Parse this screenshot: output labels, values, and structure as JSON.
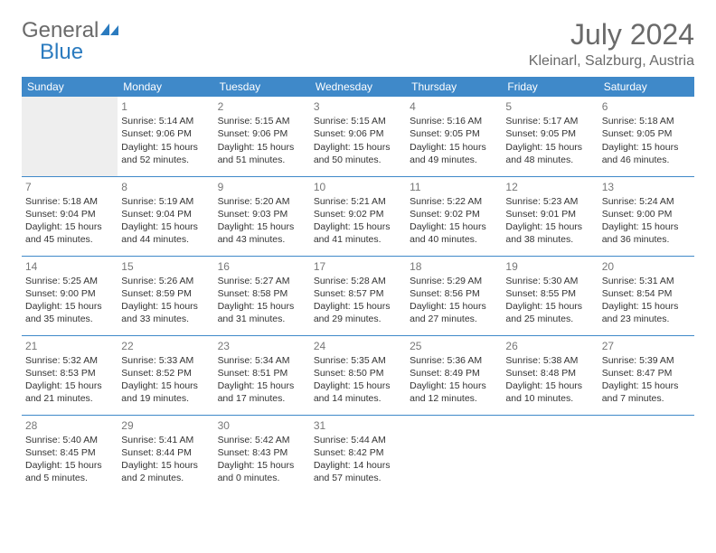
{
  "logo": {
    "part1": "General",
    "part2": "Blue"
  },
  "title": "July 2024",
  "location": "Kleinarl, Salzburg, Austria",
  "colors": {
    "header_bg": "#3f89c9",
    "header_text": "#ffffff",
    "rule": "#3f89c9",
    "muted_text": "#6a6a6a",
    "body_text": "#333333",
    "lead_blank_bg": "#eeeeee",
    "logo_blue": "#2b7bbf"
  },
  "day_headers": [
    "Sunday",
    "Monday",
    "Tuesday",
    "Wednesday",
    "Thursday",
    "Friday",
    "Saturday"
  ],
  "weeks": [
    [
      {
        "blank": true,
        "lead": true
      },
      {
        "day": "1",
        "sunrise": "Sunrise: 5:14 AM",
        "sunset": "Sunset: 9:06 PM",
        "d1": "Daylight: 15 hours",
        "d2": "and 52 minutes."
      },
      {
        "day": "2",
        "sunrise": "Sunrise: 5:15 AM",
        "sunset": "Sunset: 9:06 PM",
        "d1": "Daylight: 15 hours",
        "d2": "and 51 minutes."
      },
      {
        "day": "3",
        "sunrise": "Sunrise: 5:15 AM",
        "sunset": "Sunset: 9:06 PM",
        "d1": "Daylight: 15 hours",
        "d2": "and 50 minutes."
      },
      {
        "day": "4",
        "sunrise": "Sunrise: 5:16 AM",
        "sunset": "Sunset: 9:05 PM",
        "d1": "Daylight: 15 hours",
        "d2": "and 49 minutes."
      },
      {
        "day": "5",
        "sunrise": "Sunrise: 5:17 AM",
        "sunset": "Sunset: 9:05 PM",
        "d1": "Daylight: 15 hours",
        "d2": "and 48 minutes."
      },
      {
        "day": "6",
        "sunrise": "Sunrise: 5:18 AM",
        "sunset": "Sunset: 9:05 PM",
        "d1": "Daylight: 15 hours",
        "d2": "and 46 minutes."
      }
    ],
    [
      {
        "day": "7",
        "sunrise": "Sunrise: 5:18 AM",
        "sunset": "Sunset: 9:04 PM",
        "d1": "Daylight: 15 hours",
        "d2": "and 45 minutes."
      },
      {
        "day": "8",
        "sunrise": "Sunrise: 5:19 AM",
        "sunset": "Sunset: 9:04 PM",
        "d1": "Daylight: 15 hours",
        "d2": "and 44 minutes."
      },
      {
        "day": "9",
        "sunrise": "Sunrise: 5:20 AM",
        "sunset": "Sunset: 9:03 PM",
        "d1": "Daylight: 15 hours",
        "d2": "and 43 minutes."
      },
      {
        "day": "10",
        "sunrise": "Sunrise: 5:21 AM",
        "sunset": "Sunset: 9:02 PM",
        "d1": "Daylight: 15 hours",
        "d2": "and 41 minutes."
      },
      {
        "day": "11",
        "sunrise": "Sunrise: 5:22 AM",
        "sunset": "Sunset: 9:02 PM",
        "d1": "Daylight: 15 hours",
        "d2": "and 40 minutes."
      },
      {
        "day": "12",
        "sunrise": "Sunrise: 5:23 AM",
        "sunset": "Sunset: 9:01 PM",
        "d1": "Daylight: 15 hours",
        "d2": "and 38 minutes."
      },
      {
        "day": "13",
        "sunrise": "Sunrise: 5:24 AM",
        "sunset": "Sunset: 9:00 PM",
        "d1": "Daylight: 15 hours",
        "d2": "and 36 minutes."
      }
    ],
    [
      {
        "day": "14",
        "sunrise": "Sunrise: 5:25 AM",
        "sunset": "Sunset: 9:00 PM",
        "d1": "Daylight: 15 hours",
        "d2": "and 35 minutes."
      },
      {
        "day": "15",
        "sunrise": "Sunrise: 5:26 AM",
        "sunset": "Sunset: 8:59 PM",
        "d1": "Daylight: 15 hours",
        "d2": "and 33 minutes."
      },
      {
        "day": "16",
        "sunrise": "Sunrise: 5:27 AM",
        "sunset": "Sunset: 8:58 PM",
        "d1": "Daylight: 15 hours",
        "d2": "and 31 minutes."
      },
      {
        "day": "17",
        "sunrise": "Sunrise: 5:28 AM",
        "sunset": "Sunset: 8:57 PM",
        "d1": "Daylight: 15 hours",
        "d2": "and 29 minutes."
      },
      {
        "day": "18",
        "sunrise": "Sunrise: 5:29 AM",
        "sunset": "Sunset: 8:56 PM",
        "d1": "Daylight: 15 hours",
        "d2": "and 27 minutes."
      },
      {
        "day": "19",
        "sunrise": "Sunrise: 5:30 AM",
        "sunset": "Sunset: 8:55 PM",
        "d1": "Daylight: 15 hours",
        "d2": "and 25 minutes."
      },
      {
        "day": "20",
        "sunrise": "Sunrise: 5:31 AM",
        "sunset": "Sunset: 8:54 PM",
        "d1": "Daylight: 15 hours",
        "d2": "and 23 minutes."
      }
    ],
    [
      {
        "day": "21",
        "sunrise": "Sunrise: 5:32 AM",
        "sunset": "Sunset: 8:53 PM",
        "d1": "Daylight: 15 hours",
        "d2": "and 21 minutes."
      },
      {
        "day": "22",
        "sunrise": "Sunrise: 5:33 AM",
        "sunset": "Sunset: 8:52 PM",
        "d1": "Daylight: 15 hours",
        "d2": "and 19 minutes."
      },
      {
        "day": "23",
        "sunrise": "Sunrise: 5:34 AM",
        "sunset": "Sunset: 8:51 PM",
        "d1": "Daylight: 15 hours",
        "d2": "and 17 minutes."
      },
      {
        "day": "24",
        "sunrise": "Sunrise: 5:35 AM",
        "sunset": "Sunset: 8:50 PM",
        "d1": "Daylight: 15 hours",
        "d2": "and 14 minutes."
      },
      {
        "day": "25",
        "sunrise": "Sunrise: 5:36 AM",
        "sunset": "Sunset: 8:49 PM",
        "d1": "Daylight: 15 hours",
        "d2": "and 12 minutes."
      },
      {
        "day": "26",
        "sunrise": "Sunrise: 5:38 AM",
        "sunset": "Sunset: 8:48 PM",
        "d1": "Daylight: 15 hours",
        "d2": "and 10 minutes."
      },
      {
        "day": "27",
        "sunrise": "Sunrise: 5:39 AM",
        "sunset": "Sunset: 8:47 PM",
        "d1": "Daylight: 15 hours",
        "d2": "and 7 minutes."
      }
    ],
    [
      {
        "day": "28",
        "sunrise": "Sunrise: 5:40 AM",
        "sunset": "Sunset: 8:45 PM",
        "d1": "Daylight: 15 hours",
        "d2": "and 5 minutes."
      },
      {
        "day": "29",
        "sunrise": "Sunrise: 5:41 AM",
        "sunset": "Sunset: 8:44 PM",
        "d1": "Daylight: 15 hours",
        "d2": "and 2 minutes."
      },
      {
        "day": "30",
        "sunrise": "Sunrise: 5:42 AM",
        "sunset": "Sunset: 8:43 PM",
        "d1": "Daylight: 15 hours",
        "d2": "and 0 minutes."
      },
      {
        "day": "31",
        "sunrise": "Sunrise: 5:44 AM",
        "sunset": "Sunset: 8:42 PM",
        "d1": "Daylight: 14 hours",
        "d2": "and 57 minutes."
      },
      {
        "blank": true
      },
      {
        "blank": true
      },
      {
        "blank": true
      }
    ]
  ]
}
